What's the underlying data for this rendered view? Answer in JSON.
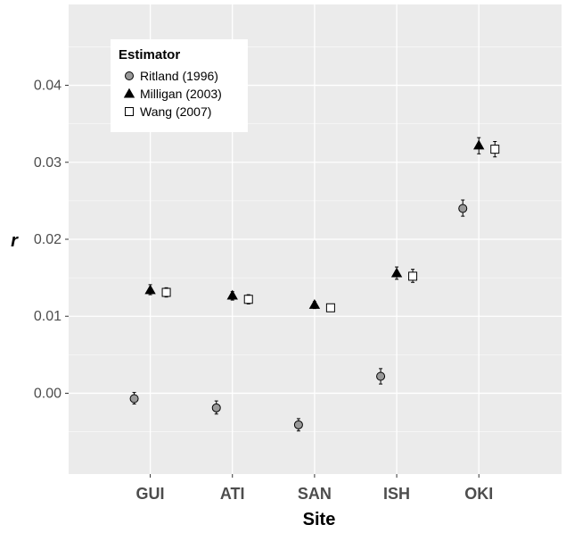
{
  "chart_data": {
    "type": "scatter",
    "xlabel": "Site",
    "ylabel": "r",
    "categories": [
      "GUI",
      "ATI",
      "SAN",
      "ISH",
      "OKI"
    ],
    "ylim": [
      -0.0105,
      0.0505
    ],
    "yticks": [
      0.0,
      0.01,
      0.02,
      0.03,
      0.04
    ],
    "ytick_labels": [
      "0.00",
      "0.01",
      "0.02",
      "0.03",
      "0.04"
    ],
    "grid": true,
    "legend": {
      "title": "Estimator",
      "position": "top-left"
    },
    "series": [
      {
        "name": "Ritland (1996)",
        "marker": "circle",
        "color": "#999999",
        "values": [
          -0.0007,
          -0.0019,
          -0.0041,
          0.0022,
          0.024
        ],
        "err_low": [
          -0.0014,
          -0.0027,
          -0.0049,
          0.0012,
          0.023
        ],
        "err_high": [
          0.0001,
          -0.001,
          -0.0033,
          0.0032,
          0.0251
        ]
      },
      {
        "name": "Milligan (2003)",
        "marker": "triangle",
        "color": "#000000",
        "values": [
          0.0134,
          0.0127,
          0.0115,
          0.0156,
          0.0322
        ],
        "err_low": [
          0.0128,
          0.0121,
          0.011,
          0.0148,
          0.0311
        ],
        "err_high": [
          0.0141,
          0.0132,
          0.0119,
          0.0164,
          0.0332
        ]
      },
      {
        "name": "Wang (2007)",
        "marker": "square",
        "color": "#ffffff",
        "values": [
          0.0131,
          0.0122,
          0.0111,
          0.0152,
          0.0317
        ],
        "err_low": [
          0.0125,
          0.0116,
          0.0107,
          0.0144,
          0.0307
        ],
        "err_high": [
          0.0137,
          0.0128,
          0.0114,
          0.0161,
          0.0327
        ]
      }
    ]
  }
}
